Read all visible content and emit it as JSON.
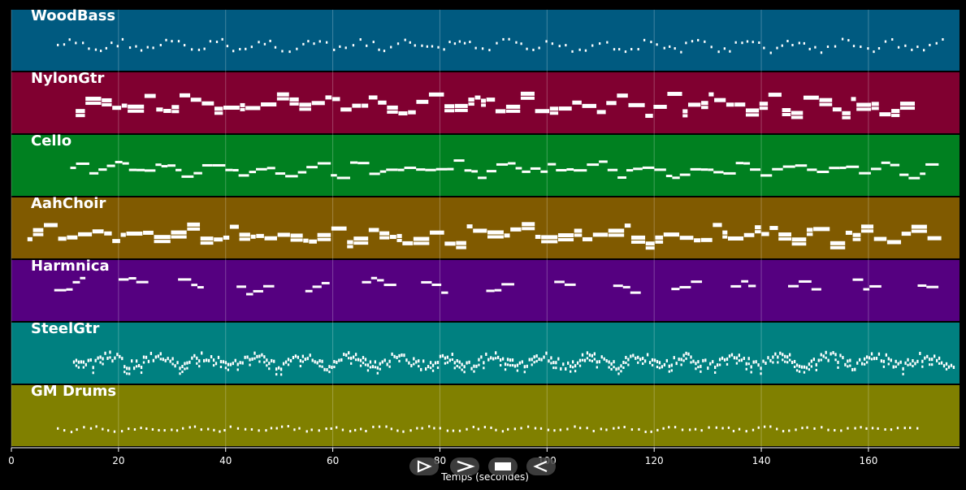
{
  "chart_data": {
    "type": "piano-roll",
    "xlabel": "Temps (secondes)",
    "xlim": [
      0,
      177
    ],
    "xticks": [
      0,
      20,
      40,
      60,
      80,
      100,
      120,
      140,
      160
    ],
    "grid": true,
    "tracks": [
      {
        "name": "WoodBass",
        "color": "#005a80",
        "start": 8.5,
        "end": 174,
        "style": "dots",
        "pitch": [
          0.45,
          0.7
        ]
      },
      {
        "name": "NylonGtr",
        "color": "#800030",
        "start": 12,
        "end": 168,
        "style": "blocks",
        "pitch": [
          0.3,
          0.7
        ]
      },
      {
        "name": "Cello",
        "color": "#008020",
        "start": 11,
        "end": 173,
        "style": "line",
        "pitch": [
          0.4,
          0.7
        ]
      },
      {
        "name": "AahChoir",
        "color": "#805a00",
        "start": 3,
        "end": 173,
        "style": "blocks",
        "pitch": [
          0.4,
          0.75
        ]
      },
      {
        "name": "Harmnica",
        "color": "#550080",
        "start": 8,
        "end": 173,
        "style": "phrases",
        "pitch": [
          0.25,
          0.55
        ]
      },
      {
        "name": "SteelGtr",
        "color": "#008080",
        "start": 11.5,
        "end": 176,
        "style": "dense",
        "pitch": [
          0.45,
          0.75
        ]
      },
      {
        "name": "GM Drums",
        "color": "#808000",
        "start": 8.5,
        "end": 170,
        "style": "dots",
        "pitch": [
          0.65,
          0.75
        ]
      }
    ]
  },
  "controls": [
    {
      "name": "play-icon"
    },
    {
      "name": "fast-forward-icon"
    },
    {
      "name": "stop-icon"
    },
    {
      "name": "rewind-icon"
    }
  ]
}
